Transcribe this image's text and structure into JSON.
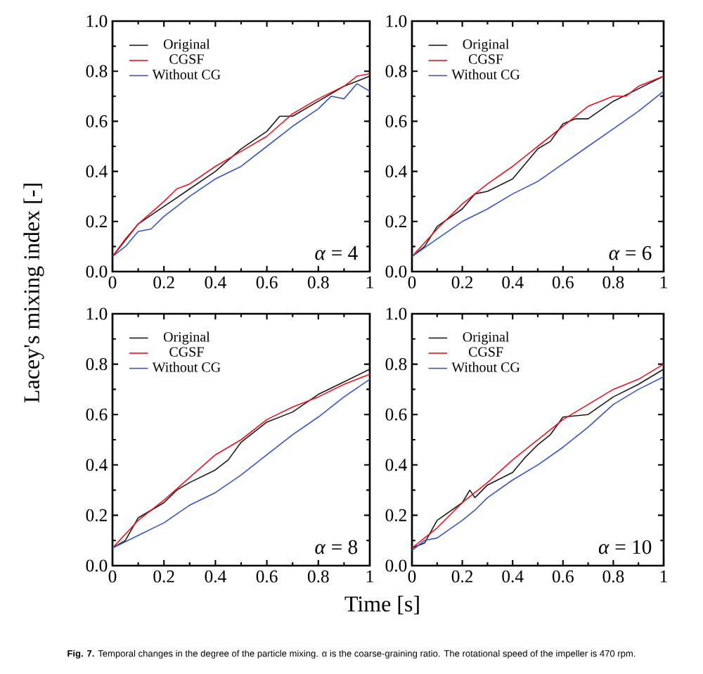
{
  "chart_data": [
    {
      "type": "line",
      "ylabel": "Lacey's mixing index [-]",
      "xlim": [
        0,
        1
      ],
      "ylim": [
        0,
        1
      ],
      "xticks": [
        0,
        0.2,
        0.4,
        0.6,
        0.8,
        1
      ],
      "yticks": [
        {
          "value": 0,
          "label": "0.0"
        },
        {
          "value": 0.2,
          "label": "0.2"
        },
        {
          "value": 0.4,
          "label": "0.4"
        },
        {
          "value": 0.6,
          "label": "0.6"
        },
        {
          "value": 0.8,
          "label": "0.8"
        },
        {
          "value": 1,
          "label": "1.0"
        }
      ],
      "legend": "top left",
      "annotations": [
        "*α* = 4"
      ],
      "series": [
        {
          "name": "Original",
          "color": "#1a1a1a",
          "x": [
            0,
            0.1,
            0.2,
            0.3,
            0.4,
            0.5,
            0.6,
            0.65,
            0.7,
            0.8,
            0.9,
            0.95,
            1
          ],
          "values": [
            0.06,
            0.19,
            0.26,
            0.33,
            0.4,
            0.49,
            0.56,
            0.62,
            0.62,
            0.68,
            0.74,
            0.76,
            0.78
          ]
        },
        {
          "name": "CGSF",
          "color": "#e8141c",
          "x": [
            0,
            0.05,
            0.1,
            0.2,
            0.25,
            0.3,
            0.4,
            0.5,
            0.6,
            0.7,
            0.8,
            0.9,
            0.95,
            1
          ],
          "values": [
            0.06,
            0.13,
            0.19,
            0.28,
            0.33,
            0.35,
            0.42,
            0.48,
            0.54,
            0.63,
            0.69,
            0.74,
            0.78,
            0.79
          ]
        },
        {
          "name": "Without CG",
          "color": "#3656c4",
          "x": [
            0,
            0.05,
            0.1,
            0.15,
            0.2,
            0.3,
            0.4,
            0.5,
            0.6,
            0.7,
            0.8,
            0.85,
            0.9,
            0.95,
            1
          ],
          "values": [
            0.06,
            0.1,
            0.16,
            0.17,
            0.22,
            0.3,
            0.37,
            0.42,
            0.5,
            0.58,
            0.65,
            0.7,
            0.69,
            0.75,
            0.72
          ]
        }
      ]
    },
    {
      "type": "line",
      "xlim": [
        0,
        1
      ],
      "ylim": [
        0,
        1
      ],
      "xticks": [
        0,
        0.2,
        0.4,
        0.6,
        0.8,
        1
      ],
      "yticks": [
        {
          "value": 0,
          "label": "0.0"
        },
        {
          "value": 0.2,
          "label": "0.2"
        },
        {
          "value": 0.4,
          "label": "0.4"
        },
        {
          "value": 0.6,
          "label": "0.6"
        },
        {
          "value": 0.8,
          "label": "0.8"
        },
        {
          "value": 1,
          "label": "1.0"
        }
      ],
      "legend": "top left",
      "annotations": [
        "*α* = 6"
      ],
      "series": [
        {
          "name": "Original",
          "color": "#1a1a1a",
          "x": [
            0,
            0.05,
            0.1,
            0.2,
            0.25,
            0.3,
            0.4,
            0.45,
            0.5,
            0.55,
            0.6,
            0.65,
            0.7,
            0.8,
            0.9,
            1
          ],
          "values": [
            0.06,
            0.1,
            0.18,
            0.25,
            0.31,
            0.32,
            0.37,
            0.43,
            0.49,
            0.52,
            0.59,
            0.61,
            0.61,
            0.68,
            0.73,
            0.78
          ]
        },
        {
          "name": "CGSF",
          "color": "#e8141c",
          "x": [
            0,
            0.1,
            0.2,
            0.3,
            0.4,
            0.5,
            0.6,
            0.7,
            0.8,
            0.85,
            0.9,
            1
          ],
          "values": [
            0.06,
            0.17,
            0.27,
            0.35,
            0.42,
            0.5,
            0.58,
            0.66,
            0.7,
            0.7,
            0.74,
            0.78
          ]
        },
        {
          "name": "Without CG",
          "color": "#3656c4",
          "x": [
            0,
            0.1,
            0.2,
            0.3,
            0.4,
            0.5,
            0.6,
            0.7,
            0.8,
            0.9,
            1
          ],
          "values": [
            0.06,
            0.13,
            0.2,
            0.25,
            0.31,
            0.36,
            0.43,
            0.5,
            0.57,
            0.64,
            0.72
          ]
        }
      ]
    },
    {
      "type": "line",
      "xlabel": "Time [s]",
      "xlim": [
        0,
        1
      ],
      "ylim": [
        0,
        1
      ],
      "xticks": [
        0,
        0.2,
        0.4,
        0.6,
        0.8,
        1
      ],
      "yticks": [
        {
          "value": 0,
          "label": "0.0"
        },
        {
          "value": 0.2,
          "label": "0.2"
        },
        {
          "value": 0.4,
          "label": "0.4"
        },
        {
          "value": 0.6,
          "label": "0.6"
        },
        {
          "value": 0.8,
          "label": "0.8"
        },
        {
          "value": 1,
          "label": "1.0"
        }
      ],
      "legend": "top left",
      "annotations": [
        "*α* = 8"
      ],
      "series": [
        {
          "name": "Original",
          "color": "#1a1a1a",
          "x": [
            0,
            0.05,
            0.1,
            0.2,
            0.25,
            0.3,
            0.4,
            0.45,
            0.5,
            0.6,
            0.7,
            0.8,
            0.9,
            1
          ],
          "values": [
            0.07,
            0.1,
            0.19,
            0.25,
            0.3,
            0.33,
            0.38,
            0.42,
            0.49,
            0.57,
            0.61,
            0.68,
            0.73,
            0.78
          ]
        },
        {
          "name": "CGSF",
          "color": "#e8141c",
          "x": [
            0,
            0.1,
            0.2,
            0.3,
            0.4,
            0.5,
            0.6,
            0.7,
            0.8,
            0.9,
            1
          ],
          "values": [
            0.07,
            0.18,
            0.26,
            0.35,
            0.44,
            0.5,
            0.58,
            0.63,
            0.67,
            0.72,
            0.76
          ]
        },
        {
          "name": "Without CG",
          "color": "#3656c4",
          "x": [
            0,
            0.1,
            0.2,
            0.3,
            0.4,
            0.5,
            0.6,
            0.7,
            0.8,
            0.9,
            1
          ],
          "values": [
            0.07,
            0.12,
            0.17,
            0.24,
            0.29,
            0.36,
            0.44,
            0.52,
            0.59,
            0.67,
            0.74
          ]
        }
      ]
    },
    {
      "type": "line",
      "xlim": [
        0,
        1
      ],
      "ylim": [
        0,
        1
      ],
      "xticks": [
        0,
        0.2,
        0.4,
        0.6,
        0.8,
        1
      ],
      "yticks": [
        {
          "value": 0,
          "label": "0.0"
        },
        {
          "value": 0.2,
          "label": "0.2"
        },
        {
          "value": 0.4,
          "label": "0.4"
        },
        {
          "value": 0.6,
          "label": "0.6"
        },
        {
          "value": 0.8,
          "label": "0.8"
        },
        {
          "value": 1,
          "label": "1.0"
        }
      ],
      "legend": "top left",
      "annotations": [
        "*α* = 10",
        "**Fig. 7.** Temporal changes in the degree of the particle mixing. α is the coarse-graining ratio. The rotational speed of the impeller is 470 rpm."
      ],
      "series": [
        {
          "name": "Original",
          "color": "#1a1a1a",
          "x": [
            0,
            0.05,
            0.1,
            0.2,
            0.23,
            0.25,
            0.3,
            0.4,
            0.45,
            0.5,
            0.55,
            0.6,
            0.7,
            0.8,
            0.9,
            1
          ],
          "values": [
            0.07,
            0.09,
            0.18,
            0.25,
            0.3,
            0.27,
            0.32,
            0.37,
            0.43,
            0.48,
            0.52,
            0.59,
            0.6,
            0.67,
            0.72,
            0.78
          ]
        },
        {
          "name": "CGSF",
          "color": "#e8141c",
          "x": [
            0,
            0.1,
            0.2,
            0.3,
            0.4,
            0.5,
            0.6,
            0.7,
            0.8,
            0.9,
            1
          ],
          "values": [
            0.07,
            0.15,
            0.25,
            0.33,
            0.42,
            0.5,
            0.58,
            0.64,
            0.7,
            0.74,
            0.8
          ]
        },
        {
          "name": "Without CG",
          "color": "#3656c4",
          "x": [
            0,
            0.05,
            0.1,
            0.2,
            0.25,
            0.3,
            0.4,
            0.5,
            0.6,
            0.7,
            0.8,
            0.9,
            1
          ],
          "values": [
            0.06,
            0.1,
            0.11,
            0.18,
            0.22,
            0.27,
            0.34,
            0.4,
            0.47,
            0.55,
            0.64,
            0.7,
            0.75
          ]
        }
      ]
    }
  ]
}
